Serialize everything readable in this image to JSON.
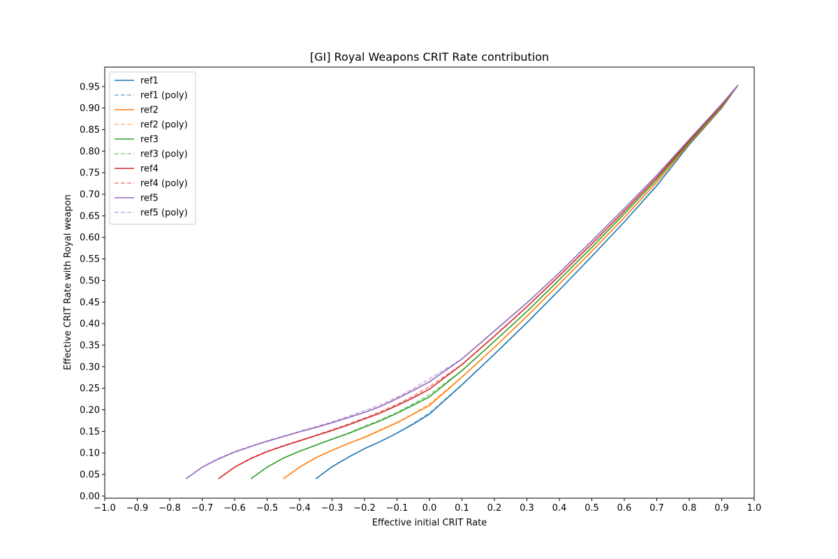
{
  "chart_data": {
    "type": "line",
    "title": "[GI] Royal Weapons CRIT Rate contribution",
    "xlabel": "Effective initial CRIT Rate",
    "ylabel": "Effective CRIT Rate with Royal weapon",
    "xlim": [
      -1.0,
      1.0
    ],
    "ylim": [
      -0.005,
      0.995
    ],
    "xticks": [
      -1.0,
      -0.9,
      -0.8,
      -0.7,
      -0.6,
      -0.5,
      -0.4,
      -0.3,
      -0.2,
      -0.1,
      0.0,
      0.1,
      0.2,
      0.3,
      0.4,
      0.5,
      0.6,
      0.7,
      0.8,
      0.9,
      1.0
    ],
    "xtick_labels": [
      "−1.0",
      "−0.9",
      "−0.8",
      "−0.7",
      "−0.6",
      "−0.5",
      "−0.4",
      "−0.3",
      "−0.2",
      "−0.1",
      "0.0",
      "0.1",
      "0.2",
      "0.3",
      "0.4",
      "0.5",
      "0.6",
      "0.7",
      "0.8",
      "0.9",
      "1.0"
    ],
    "yticks": [
      0.0,
      0.05,
      0.1,
      0.15,
      0.2,
      0.25,
      0.3,
      0.35,
      0.4,
      0.45,
      0.5,
      0.55,
      0.6,
      0.65,
      0.7,
      0.75,
      0.8,
      0.85,
      0.9,
      0.95
    ],
    "ytick_labels": [
      "0.00",
      "0.05",
      "0.10",
      "0.15",
      "0.20",
      "0.25",
      "0.30",
      "0.35",
      "0.40",
      "0.45",
      "0.50",
      "0.55",
      "0.60",
      "0.65",
      "0.70",
      "0.75",
      "0.80",
      "0.85",
      "0.90",
      "0.95"
    ],
    "grid": false,
    "legend_position": "top-left",
    "series": [
      {
        "name": "ref1",
        "style": "solid",
        "color": "#1f77b4",
        "x": [
          -0.35,
          -0.3,
          -0.25,
          -0.2,
          -0.15,
          -0.1,
          -0.05,
          0.0,
          0.1,
          0.2,
          0.3,
          0.4,
          0.5,
          0.6,
          0.7,
          0.8,
          0.9,
          0.95
        ],
        "y": [
          0.04,
          0.068,
          0.09,
          0.11,
          0.127,
          0.146,
          0.167,
          0.19,
          0.258,
          0.329,
          0.402,
          0.478,
          0.556,
          0.636,
          0.72,
          0.815,
          0.9,
          0.953
        ]
      },
      {
        "name": "ref1 (poly)",
        "style": "dashed",
        "color": "#1f77b4",
        "x": [
          -0.35,
          -0.3,
          -0.25,
          -0.2,
          -0.15,
          -0.1,
          -0.05,
          0.0,
          0.1,
          0.2,
          0.3,
          0.4,
          0.5,
          0.6,
          0.7,
          0.8,
          0.9,
          0.95
        ],
        "y": [
          0.04,
          0.068,
          0.09,
          0.11,
          0.127,
          0.146,
          0.168,
          0.193,
          0.258,
          0.329,
          0.402,
          0.478,
          0.556,
          0.636,
          0.72,
          0.815,
          0.9,
          0.953
        ]
      },
      {
        "name": "ref2",
        "style": "solid",
        "color": "#ff7f0e",
        "x": [
          -0.45,
          -0.4,
          -0.35,
          -0.3,
          -0.25,
          -0.2,
          -0.15,
          -0.1,
          -0.05,
          0.0,
          0.1,
          0.2,
          0.3,
          0.4,
          0.5,
          0.6,
          0.7,
          0.8,
          0.9,
          0.95
        ],
        "y": [
          0.04,
          0.067,
          0.089,
          0.106,
          0.122,
          0.136,
          0.153,
          0.17,
          0.19,
          0.21,
          0.276,
          0.345,
          0.417,
          0.492,
          0.568,
          0.646,
          0.728,
          0.818,
          0.902,
          0.953
        ]
      },
      {
        "name": "ref2 (poly)",
        "style": "dashed",
        "color": "#ff7f0e",
        "x": [
          -0.45,
          -0.4,
          -0.35,
          -0.3,
          -0.25,
          -0.2,
          -0.15,
          -0.1,
          -0.05,
          0.0,
          0.1,
          0.2,
          0.3,
          0.4,
          0.5,
          0.6,
          0.7,
          0.8,
          0.9,
          0.95
        ],
        "y": [
          0.04,
          0.067,
          0.089,
          0.106,
          0.122,
          0.137,
          0.154,
          0.171,
          0.191,
          0.214,
          0.276,
          0.345,
          0.417,
          0.492,
          0.568,
          0.646,
          0.728,
          0.818,
          0.902,
          0.953
        ]
      },
      {
        "name": "ref3",
        "style": "solid",
        "color": "#2ca02c",
        "x": [
          -0.55,
          -0.5,
          -0.45,
          -0.4,
          -0.35,
          -0.3,
          -0.25,
          -0.2,
          -0.15,
          -0.1,
          -0.05,
          0.0,
          0.1,
          0.2,
          0.3,
          0.4,
          0.5,
          0.6,
          0.7,
          0.8,
          0.9,
          0.95
        ],
        "y": [
          0.04,
          0.067,
          0.088,
          0.104,
          0.118,
          0.132,
          0.145,
          0.16,
          0.175,
          0.192,
          0.211,
          0.23,
          0.291,
          0.359,
          0.428,
          0.502,
          0.577,
          0.655,
          0.734,
          0.821,
          0.905,
          0.953
        ]
      },
      {
        "name": "ref3 (poly)",
        "style": "dashed",
        "color": "#2ca02c",
        "x": [
          -0.55,
          -0.5,
          -0.45,
          -0.4,
          -0.35,
          -0.3,
          -0.25,
          -0.2,
          -0.15,
          -0.1,
          -0.05,
          0.0,
          0.1,
          0.2,
          0.3,
          0.4,
          0.5,
          0.6,
          0.7,
          0.8,
          0.9,
          0.95
        ],
        "y": [
          0.04,
          0.067,
          0.088,
          0.104,
          0.118,
          0.132,
          0.146,
          0.162,
          0.177,
          0.194,
          0.214,
          0.235,
          0.291,
          0.359,
          0.428,
          0.502,
          0.577,
          0.655,
          0.734,
          0.821,
          0.905,
          0.953
        ]
      },
      {
        "name": "ref4",
        "style": "solid",
        "color": "#d62728",
        "x": [
          -0.65,
          -0.6,
          -0.55,
          -0.5,
          -0.45,
          -0.4,
          -0.35,
          -0.3,
          -0.25,
          -0.2,
          -0.15,
          -0.1,
          -0.05,
          0.0,
          0.1,
          0.2,
          0.3,
          0.4,
          0.5,
          0.6,
          0.7,
          0.8,
          0.9,
          0.95
        ],
        "y": [
          0.04,
          0.067,
          0.087,
          0.103,
          0.116,
          0.128,
          0.14,
          0.152,
          0.165,
          0.179,
          0.193,
          0.21,
          0.228,
          0.248,
          0.305,
          0.371,
          0.439,
          0.511,
          0.585,
          0.661,
          0.739,
          0.824,
          0.907,
          0.953
        ]
      },
      {
        "name": "ref4 (poly)",
        "style": "dashed",
        "color": "#d62728",
        "x": [
          -0.65,
          -0.6,
          -0.55,
          -0.5,
          -0.45,
          -0.4,
          -0.35,
          -0.3,
          -0.25,
          -0.2,
          -0.15,
          -0.1,
          -0.05,
          0.0,
          0.1,
          0.2,
          0.3,
          0.4,
          0.5,
          0.6,
          0.7,
          0.8,
          0.9,
          0.95
        ],
        "y": [
          0.04,
          0.067,
          0.088,
          0.104,
          0.117,
          0.129,
          0.141,
          0.154,
          0.167,
          0.181,
          0.196,
          0.213,
          0.232,
          0.254,
          0.305,
          0.371,
          0.439,
          0.511,
          0.585,
          0.661,
          0.739,
          0.824,
          0.907,
          0.953
        ]
      },
      {
        "name": "ref5",
        "style": "solid",
        "color": "#9467bd",
        "x": [
          -0.75,
          -0.7,
          -0.65,
          -0.6,
          -0.55,
          -0.5,
          -0.45,
          -0.4,
          -0.35,
          -0.3,
          -0.25,
          -0.2,
          -0.15,
          -0.1,
          -0.05,
          0.0,
          0.1,
          0.2,
          0.3,
          0.4,
          0.5,
          0.6,
          0.7,
          0.8,
          0.9,
          0.95
        ],
        "y": [
          0.04,
          0.067,
          0.086,
          0.102,
          0.115,
          0.127,
          0.138,
          0.149,
          0.159,
          0.17,
          0.182,
          0.194,
          0.208,
          0.226,
          0.245,
          0.265,
          0.318,
          0.383,
          0.448,
          0.518,
          0.592,
          0.667,
          0.744,
          0.827,
          0.909,
          0.953
        ]
      },
      {
        "name": "ref5 (poly)",
        "style": "dashed",
        "color": "#9467bd",
        "x": [
          -0.75,
          -0.7,
          -0.65,
          -0.6,
          -0.55,
          -0.5,
          -0.45,
          -0.4,
          -0.35,
          -0.3,
          -0.25,
          -0.2,
          -0.15,
          -0.1,
          -0.05,
          0.0,
          0.1,
          0.2,
          0.3,
          0.4,
          0.5,
          0.6,
          0.7,
          0.8,
          0.9,
          0.95
        ],
        "y": [
          0.04,
          0.067,
          0.087,
          0.103,
          0.116,
          0.128,
          0.139,
          0.15,
          0.161,
          0.172,
          0.185,
          0.198,
          0.212,
          0.229,
          0.249,
          0.272,
          0.318,
          0.383,
          0.448,
          0.518,
          0.592,
          0.667,
          0.744,
          0.827,
          0.909,
          0.953
        ]
      }
    ]
  }
}
